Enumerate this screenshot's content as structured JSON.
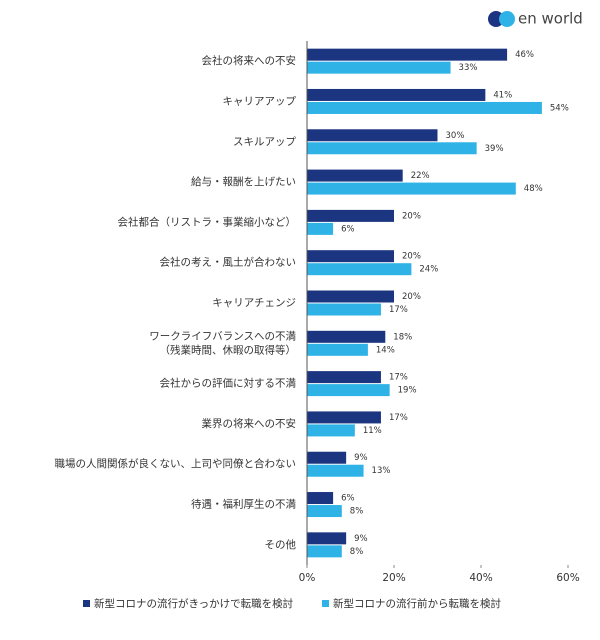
{
  "chart_data": {
    "type": "bar",
    "orientation": "horizontal",
    "logo": "en world",
    "categories": [
      "会社の将来への不安",
      "キャリアアップ",
      "スキルアップ",
      "給与・報酬を上げたい",
      "会社都合（リストラ・事業縮小など）",
      "会社の考え・風土が合わない",
      "キャリアチェンジ",
      [
        "ワークライフバランスへの不満",
        "（残業時間、休暇の取得等）"
      ],
      "会社からの評価に対する不満",
      "業界の将来への不安",
      "職場の人間関係が良くない、上司や同僚と合わない",
      "待遇・福利厚生の不満",
      "その他"
    ],
    "series": [
      {
        "name": "新型コロナの流行がきっかけで転職を検討",
        "color": "#1c3580",
        "values": [
          46,
          41,
          30,
          22,
          20,
          20,
          20,
          18,
          17,
          17,
          9,
          6,
          9
        ],
        "value_labels": [
          "46%",
          "41%",
          "30%",
          "22%",
          "20%",
          "20%",
          "20%",
          "18%",
          "17%",
          "17%",
          "9%",
          "6%",
          "9%"
        ]
      },
      {
        "name": "新型コロナの流行前から転職を検討",
        "color": "#2fb3e6",
        "values": [
          33,
          54,
          39,
          48,
          6,
          24,
          17,
          14,
          19,
          11,
          13,
          8,
          8
        ],
        "value_labels": [
          "33%",
          "54%",
          "39%",
          "48%",
          "6%",
          "24%",
          "17%",
          "14%",
          "19%",
          "11%",
          "13%",
          "8%",
          "8%"
        ]
      }
    ],
    "xlim": [
      0,
      60
    ],
    "xticks": [
      {
        "value": 0,
        "label": "0%"
      },
      {
        "value": 20,
        "label": "20%"
      },
      {
        "value": 40,
        "label": "40%"
      },
      {
        "value": 60,
        "label": "60%"
      }
    ],
    "grid": false,
    "legend": "bottom"
  }
}
